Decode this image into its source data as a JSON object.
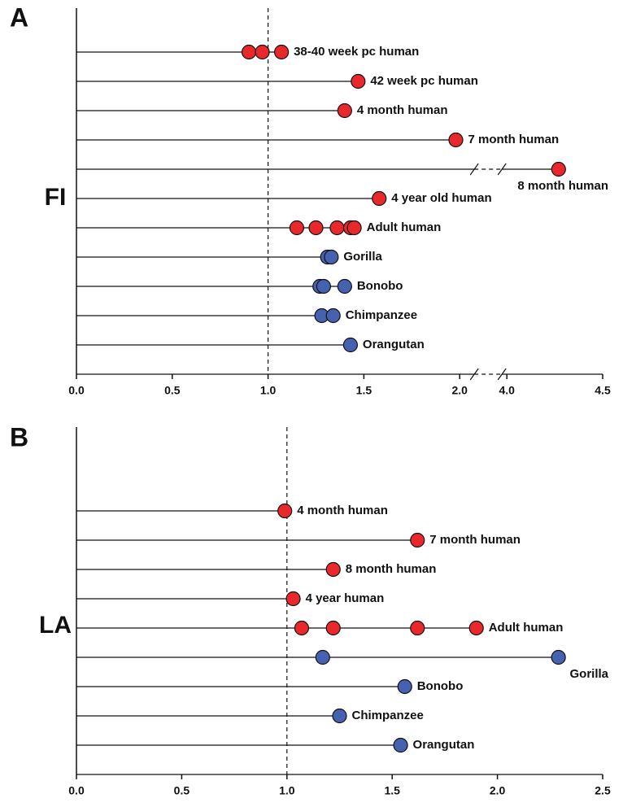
{
  "chart_data": [
    {
      "type": "dot",
      "panel": "A",
      "ylabel": "FI",
      "categories": [
        "38-40 week pc human",
        "42 week pc human",
        "4 month human",
        "7 month human",
        "8 month human",
        "4 year old human",
        "Adult human",
        "Gorilla",
        "Bonobo",
        "Chimpanzee",
        "Orangutan"
      ],
      "values": [
        [
          0.9,
          0.97,
          1.07
        ],
        [
          1.47
        ],
        [
          1.4
        ],
        [
          1.98
        ],
        [
          4.27
        ],
        [
          1.58
        ],
        [
          1.15,
          1.25,
          1.36,
          1.43,
          1.45
        ],
        [
          1.31,
          1.33
        ],
        [
          1.27,
          1.29,
          1.4
        ],
        [
          1.28,
          1.34
        ],
        [
          1.43
        ]
      ],
      "colors": [
        "#e8282b",
        "#e8282b",
        "#e8282b",
        "#e8282b",
        "#e8282b",
        "#e8282b",
        "#e8282b",
        "#4661b0",
        "#4661b0",
        "#4661b0",
        "#4661b0"
      ],
      "xlim": [
        0,
        4.5
      ],
      "xbreak": [
        2,
        4
      ],
      "xticks": [
        {
          "value": 0,
          "label": "0.0"
        },
        {
          "value": 0.5,
          "label": "0.5"
        },
        {
          "value": 1,
          "label": "1.0"
        },
        {
          "value": 1.5,
          "label": "1.5"
        },
        {
          "value": 2,
          "label": "2.0"
        },
        {
          "value": 4,
          "label": "4.0"
        },
        {
          "value": 4.5,
          "label": "4.5"
        }
      ],
      "reference_x": 1
    },
    {
      "type": "dot",
      "panel": "B",
      "ylabel": "LA",
      "categories": [
        "4 month human",
        "7 month human",
        "8 month human",
        "4 year human",
        "Adult human",
        "Gorilla",
        "Bonobo",
        "Chimpanzee",
        "Orangutan"
      ],
      "values": [
        [
          0.99
        ],
        [
          1.62
        ],
        [
          1.22
        ],
        [
          1.03
        ],
        [
          1.07,
          1.22,
          1.62,
          1.9
        ],
        [
          1.17,
          2.29
        ],
        [
          1.56
        ],
        [
          1.25
        ],
        [
          1.54
        ]
      ],
      "colors": [
        "#e8282b",
        "#e8282b",
        "#e8282b",
        "#e8282b",
        "#e8282b",
        "#4661b0",
        "#4661b0",
        "#4661b0",
        "#4661b0"
      ],
      "xlim": [
        0,
        2.5
      ],
      "xticks": [
        {
          "value": 0,
          "label": "0.0"
        },
        {
          "value": 0.5,
          "label": "0.5"
        },
        {
          "value": 1,
          "label": "1.0"
        },
        {
          "value": 1.5,
          "label": "1.5"
        },
        {
          "value": 2,
          "label": "2.0"
        },
        {
          "value": 2.5,
          "label": "2.5"
        }
      ],
      "reference_x": 1
    }
  ]
}
